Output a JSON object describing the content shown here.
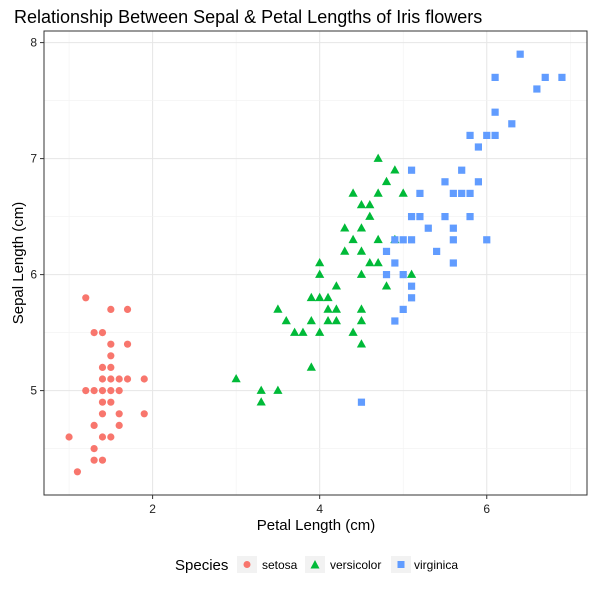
{
  "chart_data": {
    "type": "scatter",
    "title": "Relationship Between Sepal & Petal Lengths of Iris flowers",
    "xlabel": "Petal Length (cm)",
    "ylabel": "Sepal Length (cm)",
    "xlim": [
      0.7,
      7.2
    ],
    "ylim": [
      4.1,
      8.1
    ],
    "xticks": [
      2,
      4,
      6
    ],
    "yticks": [
      5,
      6,
      7,
      8
    ],
    "grid": true,
    "legend_position": "bottom",
    "legend_title": "Species",
    "series": [
      {
        "name": "setosa",
        "marker": "circle",
        "color": "#F8766D",
        "points": [
          [
            1.0,
            4.6
          ],
          [
            1.1,
            4.3
          ],
          [
            1.2,
            5.8
          ],
          [
            1.2,
            5.0
          ],
          [
            1.3,
            5.5
          ],
          [
            1.3,
            5.0
          ],
          [
            1.3,
            4.7
          ],
          [
            1.3,
            4.5
          ],
          [
            1.3,
            4.4
          ],
          [
            1.4,
            5.5
          ],
          [
            1.4,
            5.2
          ],
          [
            1.4,
            5.1
          ],
          [
            1.4,
            5.0
          ],
          [
            1.4,
            4.9
          ],
          [
            1.4,
            4.8
          ],
          [
            1.4,
            4.6
          ],
          [
            1.4,
            4.4
          ],
          [
            1.5,
            5.7
          ],
          [
            1.5,
            5.4
          ],
          [
            1.5,
            5.3
          ],
          [
            1.5,
            5.2
          ],
          [
            1.5,
            5.1
          ],
          [
            1.5,
            5.0
          ],
          [
            1.5,
            4.9
          ],
          [
            1.5,
            4.6
          ],
          [
            1.6,
            5.1
          ],
          [
            1.6,
            5.0
          ],
          [
            1.6,
            4.8
          ],
          [
            1.6,
            4.7
          ],
          [
            1.7,
            5.7
          ],
          [
            1.7,
            5.4
          ],
          [
            1.7,
            5.1
          ],
          [
            1.9,
            5.1
          ],
          [
            1.9,
            4.8
          ]
        ]
      },
      {
        "name": "versicolor",
        "marker": "triangle",
        "color": "#00BA38",
        "points": [
          [
            3.0,
            5.1
          ],
          [
            3.3,
            5.0
          ],
          [
            3.3,
            4.9
          ],
          [
            3.5,
            5.7
          ],
          [
            3.5,
            5.0
          ],
          [
            3.6,
            5.6
          ],
          [
            3.7,
            5.5
          ],
          [
            3.8,
            5.5
          ],
          [
            3.9,
            5.8
          ],
          [
            3.9,
            5.6
          ],
          [
            3.9,
            5.2
          ],
          [
            4.0,
            6.1
          ],
          [
            4.0,
            6.0
          ],
          [
            4.0,
            5.8
          ],
          [
            4.0,
            5.5
          ],
          [
            4.1,
            5.8
          ],
          [
            4.1,
            5.7
          ],
          [
            4.1,
            5.6
          ],
          [
            4.2,
            5.9
          ],
          [
            4.2,
            5.7
          ],
          [
            4.2,
            5.6
          ],
          [
            4.3,
            6.4
          ],
          [
            4.3,
            6.2
          ],
          [
            4.4,
            6.7
          ],
          [
            4.4,
            6.3
          ],
          [
            4.4,
            5.5
          ],
          [
            4.5,
            6.6
          ],
          [
            4.5,
            6.4
          ],
          [
            4.5,
            6.2
          ],
          [
            4.5,
            6.0
          ],
          [
            4.5,
            5.7
          ],
          [
            4.5,
            5.6
          ],
          [
            4.5,
            5.4
          ],
          [
            4.6,
            6.6
          ],
          [
            4.6,
            6.5
          ],
          [
            4.6,
            6.1
          ],
          [
            4.7,
            7.0
          ],
          [
            4.7,
            6.7
          ],
          [
            4.7,
            6.3
          ],
          [
            4.7,
            6.1
          ],
          [
            4.8,
            6.8
          ],
          [
            4.8,
            5.9
          ],
          [
            4.9,
            6.9
          ],
          [
            4.9,
            6.3
          ],
          [
            5.0,
            6.7
          ],
          [
            5.1,
            6.0
          ]
        ]
      },
      {
        "name": "virginica",
        "marker": "square",
        "color": "#619CFF",
        "points": [
          [
            4.5,
            4.9
          ],
          [
            4.8,
            6.2
          ],
          [
            4.8,
            6.0
          ],
          [
            4.9,
            6.3
          ],
          [
            4.9,
            6.1
          ],
          [
            4.9,
            5.6
          ],
          [
            5.0,
            6.3
          ],
          [
            5.0,
            6.0
          ],
          [
            5.0,
            5.7
          ],
          [
            5.1,
            6.9
          ],
          [
            5.1,
            6.5
          ],
          [
            5.1,
            6.3
          ],
          [
            5.1,
            5.9
          ],
          [
            5.1,
            5.8
          ],
          [
            5.2,
            6.7
          ],
          [
            5.2,
            6.5
          ],
          [
            5.3,
            6.4
          ],
          [
            5.4,
            6.2
          ],
          [
            5.5,
            6.8
          ],
          [
            5.5,
            6.5
          ],
          [
            5.6,
            6.7
          ],
          [
            5.6,
            6.4
          ],
          [
            5.6,
            6.3
          ],
          [
            5.6,
            6.1
          ],
          [
            5.7,
            6.9
          ],
          [
            5.7,
            6.7
          ],
          [
            5.8,
            7.2
          ],
          [
            5.8,
            6.7
          ],
          [
            5.8,
            6.5
          ],
          [
            5.9,
            7.1
          ],
          [
            5.9,
            6.8
          ],
          [
            6.0,
            7.2
          ],
          [
            6.0,
            6.3
          ],
          [
            6.1,
            7.7
          ],
          [
            6.1,
            7.4
          ],
          [
            6.1,
            7.2
          ],
          [
            6.3,
            7.3
          ],
          [
            6.4,
            7.9
          ],
          [
            6.6,
            7.6
          ],
          [
            6.7,
            7.7
          ],
          [
            6.9,
            7.7
          ]
        ]
      }
    ]
  }
}
